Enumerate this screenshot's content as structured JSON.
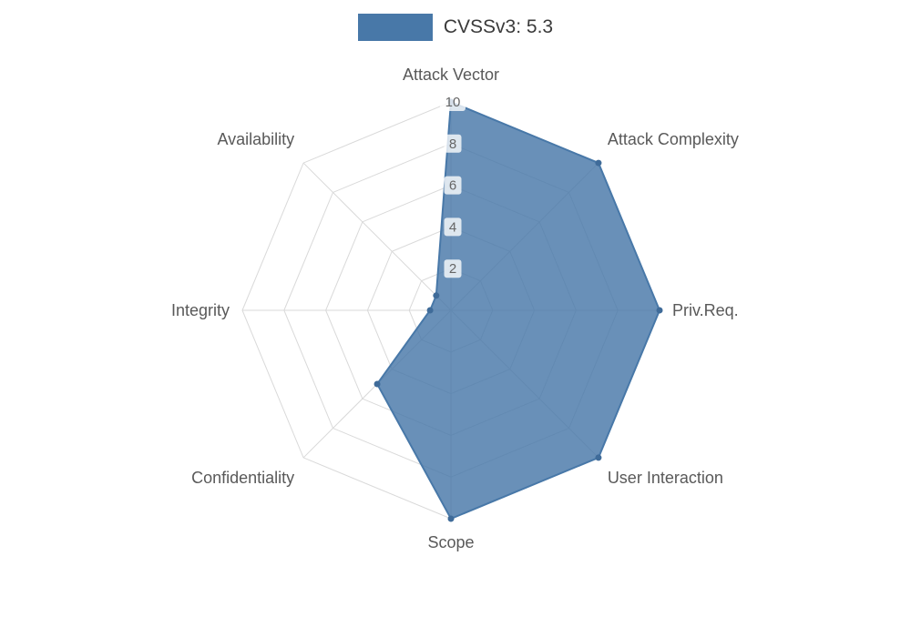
{
  "legend": {
    "label": "CVSSv3: 5.3",
    "swatch_color": "#4878a8"
  },
  "chart_data": {
    "type": "radar",
    "title": "CVSSv3: 5.3",
    "categories": [
      "Attack Vector",
      "Attack Complexity",
      "Priv.Req.",
      "User Interaction",
      "Scope",
      "Confidentiality",
      "Integrity",
      "Availability"
    ],
    "series": [
      {
        "name": "CVSSv3: 5.3",
        "values": [
          10,
          10,
          10,
          10,
          10,
          5,
          1,
          1
        ]
      }
    ],
    "ticks": [
      2,
      4,
      6,
      8,
      10
    ],
    "rmax": 10,
    "grid": true,
    "legend_position": "top",
    "fill_color": "#4878a8",
    "fill_opacity": 0.82,
    "line_color": "#3f6b99",
    "grid_color": "#d9d9d9",
    "label_color": "#595959",
    "tick_color": "#666666",
    "tick_bg_color": "rgba(255,255,255,0.78)",
    "background_color": "#ffffff"
  }
}
